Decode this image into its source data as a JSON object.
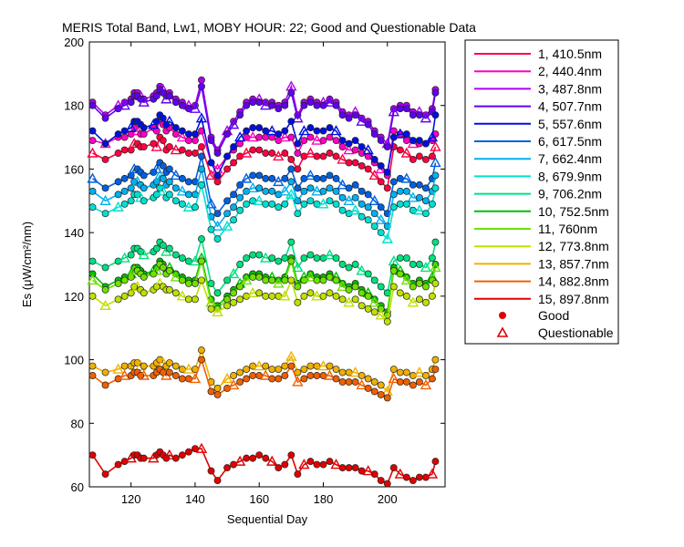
{
  "chart_data": {
    "type": "line",
    "title": "MERIS Total Band,  Lw1, MOBY HOUR: 22;  Good and Questionable Data",
    "xlabel": "Sequential Day",
    "ylabel": "Es (μW/cm²/nm)",
    "xlim": [
      107,
      218
    ],
    "ylim": [
      60,
      200
    ],
    "xticks": [
      120,
      140,
      160,
      180,
      200
    ],
    "yticks": [
      60,
      80,
      100,
      120,
      140,
      160,
      180,
      200
    ],
    "legend_position": "right, outside plot",
    "marker_legend": [
      {
        "label": "Good",
        "marker": "circle",
        "color": "#e00000"
      },
      {
        "label": "Questionable",
        "marker": "triangle",
        "color": "#e00000"
      }
    ],
    "x": [
      108,
      112,
      116,
      118,
      120,
      121,
      122,
      123,
      124,
      127,
      128,
      129,
      130,
      131,
      132,
      134,
      136,
      138,
      140,
      142,
      145,
      147,
      150,
      152,
      154,
      156,
      158,
      160,
      162,
      164,
      166,
      168,
      170,
      172,
      174,
      176,
      178,
      180,
      182,
      184,
      186,
      188,
      190,
      192,
      194,
      196,
      198,
      200,
      202,
      204,
      206,
      208,
      210,
      212,
      214,
      215
    ],
    "series": [
      {
        "name": "1, 410.5nm",
        "color": "#ff0040",
        "values": [
          165,
          163,
          165,
          166,
          166,
          168,
          168,
          167,
          167,
          168,
          167,
          170,
          169,
          166,
          167,
          166,
          166,
          165,
          165,
          167,
          158,
          156,
          160,
          162,
          164,
          165,
          166,
          166,
          165,
          165,
          164,
          165,
          163,
          160,
          164,
          165,
          164,
          164,
          165,
          164,
          163,
          162,
          162,
          161,
          160,
          158,
          156,
          154,
          167,
          166,
          165,
          163,
          164,
          163,
          164,
          167
        ]
      },
      {
        "name": "2, 440.4nm",
        "color": "#ff00c0",
        "values": [
          169,
          168,
          170,
          170,
          171,
          173,
          172,
          171,
          171,
          173,
          172,
          176,
          174,
          172,
          173,
          171,
          170,
          169,
          169,
          172,
          162,
          160,
          164,
          166,
          168,
          170,
          170,
          170,
          170,
          170,
          169,
          170,
          170,
          165,
          169,
          170,
          169,
          169,
          170,
          169,
          167,
          166,
          166,
          165,
          164,
          162,
          160,
          158,
          172,
          171,
          169,
          168,
          168,
          168,
          169,
          171
        ]
      },
      {
        "name": "3, 487.8nm",
        "color": "#b000f0",
        "values": [
          181,
          177,
          180,
          181,
          182,
          184,
          184,
          183,
          182,
          183,
          184,
          186,
          185,
          183,
          184,
          182,
          181,
          180,
          180,
          188,
          170,
          166,
          172,
          175,
          178,
          181,
          182,
          182,
          181,
          181,
          180,
          181,
          186,
          177,
          181,
          182,
          181,
          181,
          182,
          181,
          178,
          177,
          178,
          176,
          175,
          172,
          170,
          168,
          179,
          180,
          180,
          178,
          178,
          177,
          179,
          185
        ]
      },
      {
        "name": "4, 507.7nm",
        "color": "#6000f0",
        "values": [
          180,
          176,
          179,
          180,
          181,
          183,
          183,
          182,
          181,
          182,
          183,
          185,
          184,
          182,
          183,
          181,
          180,
          179,
          179,
          186,
          169,
          165,
          171,
          174,
          177,
          180,
          181,
          181,
          180,
          180,
          179,
          180,
          184,
          176,
          180,
          181,
          180,
          180,
          181,
          180,
          177,
          176,
          177,
          175,
          174,
          171,
          169,
          167,
          178,
          179,
          179,
          177,
          177,
          176,
          178,
          184
        ]
      },
      {
        "name": "5, 557.6nm",
        "color": "#0010e0",
        "values": [
          172,
          168,
          171,
          172,
          173,
          175,
          175,
          174,
          173,
          174,
          175,
          177,
          176,
          174,
          175,
          173,
          172,
          171,
          171,
          176,
          162,
          158,
          164,
          167,
          170,
          172,
          173,
          173,
          172,
          172,
          171,
          172,
          175,
          168,
          172,
          173,
          172,
          172,
          173,
          172,
          169,
          168,
          169,
          167,
          166,
          163,
          161,
          159,
          170,
          171,
          171,
          169,
          169,
          168,
          170,
          177
        ]
      },
      {
        "name": "6, 617.5nm",
        "color": "#0060e0",
        "values": [
          157,
          154,
          156,
          157,
          158,
          160,
          160,
          159,
          158,
          159,
          160,
          162,
          161,
          159,
          160,
          158,
          157,
          156,
          156,
          164,
          149,
          146,
          150,
          152,
          155,
          157,
          158,
          158,
          157,
          157,
          156,
          157,
          160,
          154,
          157,
          158,
          157,
          157,
          158,
          157,
          155,
          154,
          155,
          153,
          152,
          150,
          148,
          146,
          156,
          157,
          157,
          155,
          155,
          154,
          157,
          162
        ]
      },
      {
        "name": "7, 662.4nm",
        "color": "#00b0f0",
        "values": [
          153,
          150,
          152,
          153,
          154,
          156,
          156,
          155,
          154,
          155,
          156,
          158,
          157,
          155,
          156,
          154,
          153,
          152,
          152,
          160,
          145,
          142,
          146,
          148,
          151,
          153,
          154,
          154,
          153,
          153,
          152,
          153,
          156,
          150,
          153,
          154,
          153,
          153,
          154,
          153,
          151,
          150,
          151,
          149,
          148,
          146,
          144,
          142,
          152,
          153,
          153,
          151,
          151,
          150,
          153,
          158
        ]
      },
      {
        "name": "8, 679.9nm",
        "color": "#00e0d0",
        "values": [
          148,
          146,
          148,
          149,
          150,
          152,
          152,
          151,
          150,
          151,
          152,
          154,
          153,
          151,
          152,
          150,
          149,
          148,
          148,
          155,
          141,
          138,
          142,
          144,
          147,
          149,
          150,
          150,
          149,
          149,
          148,
          149,
          152,
          146,
          149,
          150,
          149,
          149,
          150,
          149,
          147,
          146,
          147,
          145,
          144,
          142,
          140,
          138,
          148,
          149,
          149,
          147,
          147,
          146,
          149,
          154
        ]
      },
      {
        "name": "9, 706.2nm",
        "color": "#00e080",
        "values": [
          131,
          129,
          131,
          132,
          133,
          135,
          135,
          134,
          133,
          134,
          135,
          137,
          136,
          134,
          135,
          133,
          132,
          131,
          131,
          138,
          124,
          121,
          125,
          127,
          130,
          132,
          133,
          133,
          132,
          132,
          131,
          132,
          137,
          129,
          132,
          133,
          132,
          132,
          133,
          132,
          130,
          129,
          130,
          128,
          127,
          125,
          123,
          121,
          131,
          132,
          132,
          130,
          130,
          129,
          132,
          137
        ]
      },
      {
        "name": "10, 752.5nm",
        "color": "#00c000",
        "values": [
          127,
          123,
          125,
          126,
          127,
          129,
          129,
          128,
          127,
          128,
          129,
          131,
          130,
          128,
          129,
          127,
          126,
          125,
          125,
          132,
          119,
          117,
          120,
          122,
          124,
          126,
          127,
          127,
          126,
          126,
          125,
          126,
          132,
          124,
          126,
          127,
          126,
          126,
          127,
          126,
          124,
          123,
          124,
          122,
          121,
          119,
          117,
          115,
          129,
          128,
          126,
          124,
          125,
          124,
          126,
          130
        ]
      },
      {
        "name": "11,   760nm",
        "color": "#70e000",
        "values": [
          125,
          122,
          124,
          125,
          126,
          128,
          128,
          127,
          126,
          127,
          128,
          130,
          129,
          127,
          128,
          126,
          125,
          124,
          124,
          131,
          118,
          116,
          119,
          121,
          123,
          125,
          126,
          126,
          125,
          125,
          124,
          125,
          131,
          123,
          125,
          126,
          125,
          125,
          126,
          125,
          123,
          122,
          123,
          121,
          120,
          118,
          116,
          114,
          128,
          127,
          125,
          123,
          124,
          123,
          125,
          129
        ]
      },
      {
        "name": "12, 773.8nm",
        "color": "#c0e000",
        "values": [
          120,
          117,
          119,
          120,
          121,
          123,
          123,
          122,
          121,
          122,
          123,
          124,
          123,
          122,
          122,
          121,
          120,
          119,
          119,
          125,
          116,
          115,
          117,
          118,
          119,
          120,
          121,
          121,
          120,
          120,
          120,
          120,
          125,
          118,
          120,
          121,
          120,
          120,
          121,
          120,
          119,
          118,
          119,
          117,
          116,
          115,
          114,
          112,
          123,
          121,
          120,
          118,
          119,
          118,
          120,
          124
        ]
      },
      {
        "name": "13, 857.7nm",
        "color": "#f0b000",
        "values": [
          98,
          96,
          97,
          98,
          98,
          99,
          99,
          98,
          98,
          98,
          99,
          100,
          99,
          98,
          99,
          98,
          97,
          97,
          97,
          103,
          93,
          91,
          94,
          95,
          96,
          97,
          98,
          98,
          98,
          97,
          97,
          98,
          101,
          96,
          97,
          98,
          98,
          98,
          98,
          97,
          96,
          96,
          96,
          95,
          94,
          93,
          92,
          90,
          97,
          96,
          96,
          95,
          96,
          95,
          97,
          100
        ]
      },
      {
        "name": "14, 882.8nm",
        "color": "#f06000",
        "values": [
          95,
          92,
          94,
          95,
          95,
          96,
          96,
          95,
          95,
          95,
          96,
          97,
          96,
          95,
          96,
          95,
          94,
          94,
          94,
          100,
          90,
          89,
          91,
          92,
          93,
          94,
          95,
          95,
          95,
          94,
          94,
          95,
          98,
          93,
          94,
          95,
          95,
          95,
          95,
          94,
          93,
          93,
          93,
          92,
          91,
          90,
          89,
          88,
          94,
          93,
          93,
          92,
          93,
          92,
          94,
          97
        ]
      },
      {
        "name": "15, 897.8nm",
        "color": "#e00000",
        "values": [
          70,
          64,
          67,
          68,
          69,
          70,
          70,
          69,
          69,
          69,
          70,
          71,
          70,
          69,
          70,
          69,
          70,
          71,
          72,
          72,
          65,
          62,
          66,
          67,
          68,
          69,
          69,
          70,
          69,
          68,
          66,
          67,
          70,
          64,
          67,
          68,
          67,
          67,
          68,
          67,
          66,
          66,
          66,
          65,
          65,
          64,
          62,
          61,
          66,
          64,
          63,
          62,
          63,
          63,
          64,
          68
        ]
      }
    ]
  }
}
